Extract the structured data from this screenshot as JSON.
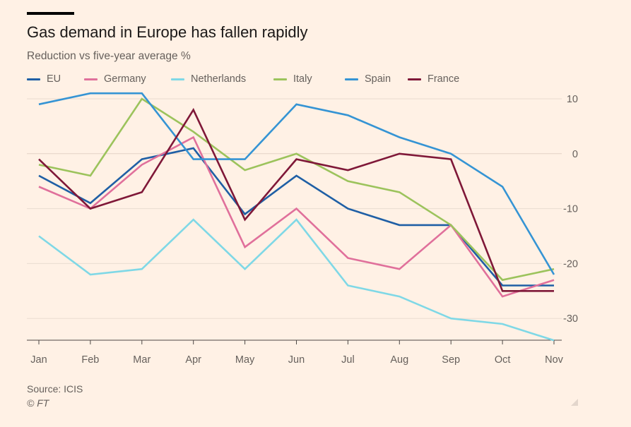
{
  "header": {
    "title": "Gas demand in Europe has fallen rapidly",
    "subtitle": "Reduction vs five-year average %"
  },
  "footer": {
    "source": "Source: ICIS",
    "copyright": "© FT"
  },
  "chart_data": {
    "type": "line",
    "title": "Gas demand in Europe has fallen rapidly",
    "subtitle": "Reduction vs five-year average %",
    "xlabel": "",
    "ylabel": "",
    "x": [
      "Jan",
      "Feb",
      "Mar",
      "Apr",
      "May",
      "Jun",
      "Jul",
      "Aug",
      "Sep",
      "Oct",
      "Nov"
    ],
    "yticks": [
      10,
      0,
      -10,
      -20,
      -30
    ],
    "ylim": [
      -34,
      11
    ],
    "grid": true,
    "legend_position": "top",
    "series": [
      {
        "name": "EU",
        "color": "#1f5fa5",
        "values": [
          -4,
          -9,
          -1,
          1,
          -11,
          -4,
          -10,
          -13,
          -13,
          -24,
          -24
        ]
      },
      {
        "name": "Germany",
        "color": "#e0709b",
        "values": [
          -6,
          -10,
          -2,
          3,
          -17,
          -10,
          -19,
          -21,
          -13,
          -26,
          -23
        ]
      },
      {
        "name": "Netherlands",
        "color": "#7fd8e6",
        "values": [
          -15,
          -22,
          -21,
          -12,
          -21,
          -12,
          -24,
          -26,
          -30,
          -31,
          -34
        ]
      },
      {
        "name": "Italy",
        "color": "#9cc35c",
        "values": [
          -2,
          -4,
          10,
          4,
          -3,
          0,
          -5,
          -7,
          -13,
          -23,
          -21
        ]
      },
      {
        "name": "Spain",
        "color": "#3594d4",
        "values": [
          9,
          11,
          11,
          -1,
          -1,
          9,
          7,
          3,
          0,
          -6,
          -22
        ]
      },
      {
        "name": "France",
        "color": "#7f1838",
        "values": [
          -1,
          -10,
          -7,
          8,
          -12,
          -1,
          -3,
          0,
          -1,
          -25,
          -25
        ]
      }
    ]
  }
}
